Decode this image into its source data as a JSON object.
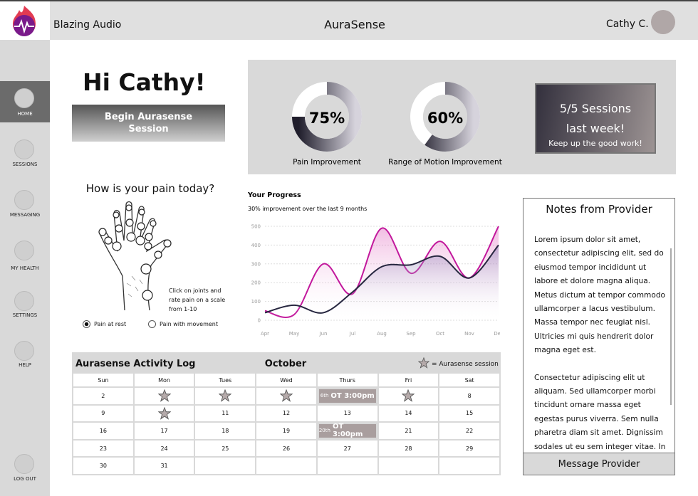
{
  "header": {
    "brand": "Blazing Audio",
    "app_name": "AuraSense",
    "user": "Cathy C."
  },
  "sidebar": {
    "items": [
      "HOME",
      "SESSIONS",
      "MESSAGING",
      "MY HEALTH",
      "SETTINGS",
      "HELP",
      "LOG OUT"
    ]
  },
  "greeting": {
    "title": "Hi Cathy!",
    "button": "Begin Aurasense Session"
  },
  "stats": [
    {
      "value": 75,
      "value_label": "75%",
      "label": "Pain Improvement"
    },
    {
      "value": 60,
      "value_label": "60%",
      "label": "Range of Motion Improvement"
    }
  ],
  "sessions_card": {
    "line1": "5/5 Sessions",
    "line2": "last week!",
    "line3": "Keep up the good work!"
  },
  "pain": {
    "question": "How is your pain today?",
    "instructions": "Click on joints and rate pain on a scale from 1-10",
    "options": [
      "Pain at rest",
      "Pain with movement"
    ]
  },
  "chart_data": {
    "type": "line",
    "title": "Your Progress",
    "subtitle": "30% improvement over the last 9 months",
    "categories": [
      "Apr",
      "May",
      "Jun",
      "Jul",
      "Aug",
      "Sep",
      "Oct",
      "Nov",
      "Dec"
    ],
    "series": [
      {
        "color": "#c2189c",
        "values": [
          50,
          30,
          300,
          140,
          490,
          250,
          420,
          225,
          500
        ]
      },
      {
        "color": "#26263f",
        "values": [
          40,
          80,
          40,
          150,
          285,
          295,
          340,
          225,
          400
        ]
      }
    ],
    "ylim": [
      0,
      500
    ],
    "yticks": [
      0,
      100,
      200,
      300,
      400,
      500
    ],
    "grid": true
  },
  "calendar": {
    "title": "Aurasense Activity Log",
    "month": "October",
    "legend": "= Aurasense session",
    "weekdays": [
      "Sun",
      "Mon",
      "Tues",
      "Wed",
      "Thurs",
      "Fri",
      "Sat"
    ],
    "rows": [
      [
        2,
        null,
        null,
        null,
        {
          "date": "6th",
          "label": "OT 3:00pm"
        },
        null,
        8
      ],
      [
        9,
        null,
        11,
        12,
        13,
        14,
        15
      ],
      [
        16,
        17,
        18,
        19,
        {
          "date": "20th",
          "label": "OT 3:00pm"
        },
        21,
        22
      ],
      [
        23,
        24,
        25,
        26,
        27,
        28,
        29
      ],
      [
        30,
        31,
        null,
        null,
        null,
        null,
        null
      ]
    ]
  },
  "notes": {
    "title": "Notes from Provider",
    "paragraphs": [
      "Lorem ipsum dolor sit amet, consectetur adipiscing elit, sed do eiusmod tempor incididunt ut labore et dolore magna aliqua. Metus dictum at tempor commodo ullamcorper a lacus vestibulum. Massa tempor nec feugiat nisl. Ultricies mi quis hendrerit dolor magna eget est.",
      "Consectetur adipiscing elit ut aliquam. Sed ullamcorper morbi tincidunt ornare massa eget egestas purus viverra. Sem nulla pharetra diam sit amet. Dignissim sodales ut eu sem integer vitae. In"
    ],
    "button": "Message Provider"
  }
}
